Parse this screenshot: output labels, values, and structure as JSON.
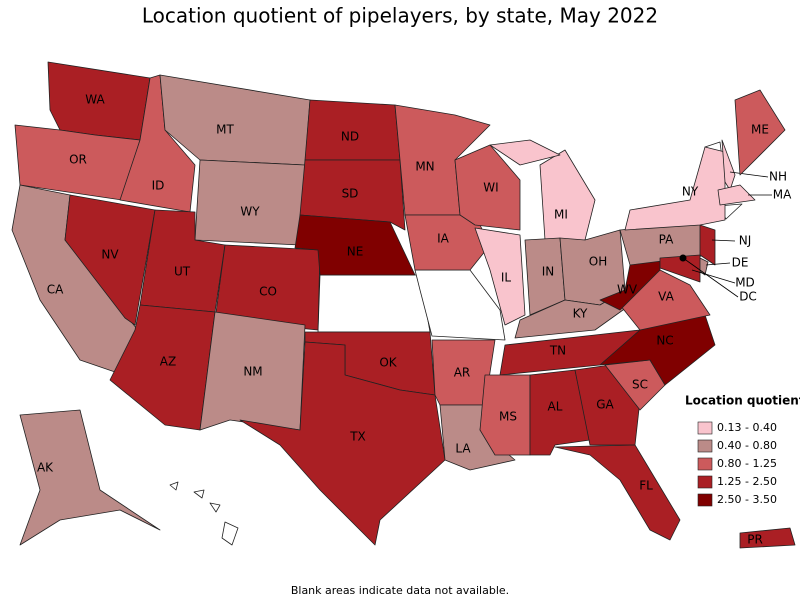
{
  "title": "Location quotient of pipelayers, by state, May 2022",
  "legend": {
    "title": "Location quotient",
    "items": [
      {
        "label": "0.13 - 0.40",
        "color": "#f9c4cd"
      },
      {
        "label": "0.40 - 0.80",
        "color": "#bb8b88"
      },
      {
        "label": "0.80 - 1.25",
        "color": "#cc5a5c"
      },
      {
        "label": "1.25 - 2.50",
        "color": "#aa1f24"
      },
      {
        "label": "2.50 - 3.50",
        "color": "#800000"
      }
    ]
  },
  "states": [
    {
      "label": "WA",
      "class": 3
    },
    {
      "label": "OR",
      "class": 2
    },
    {
      "label": "CA",
      "class": 1
    },
    {
      "label": "NV",
      "class": 3
    },
    {
      "label": "ID",
      "class": 2
    },
    {
      "label": "MT",
      "class": 1
    },
    {
      "label": "WY",
      "class": 1
    },
    {
      "label": "UT",
      "class": 3
    },
    {
      "label": "CO",
      "class": 3
    },
    {
      "label": "AZ",
      "class": 3
    },
    {
      "label": "NM",
      "class": 1
    },
    {
      "label": "ND",
      "class": 3
    },
    {
      "label": "SD",
      "class": 3
    },
    {
      "label": "NE",
      "class": 4
    },
    {
      "label": "OK",
      "class": 3
    },
    {
      "label": "TX",
      "class": 3
    },
    {
      "label": "MN",
      "class": 2
    },
    {
      "label": "IA",
      "class": 2
    },
    {
      "label": "AR",
      "class": 2
    },
    {
      "label": "LA",
      "class": 1
    },
    {
      "label": "WI",
      "class": 2
    },
    {
      "label": "IL",
      "class": 0
    },
    {
      "label": "MI",
      "class": 0
    },
    {
      "label": "IN",
      "class": 1
    },
    {
      "label": "OH",
      "class": 1
    },
    {
      "label": "KY",
      "class": 1
    },
    {
      "label": "TN",
      "class": 3
    },
    {
      "label": "MS",
      "class": 2
    },
    {
      "label": "AL",
      "class": 3
    },
    {
      "label": "GA",
      "class": 3
    },
    {
      "label": "FL",
      "class": 3
    },
    {
      "label": "SC",
      "class": 2
    },
    {
      "label": "NC",
      "class": 4
    },
    {
      "label": "VA",
      "class": 2
    },
    {
      "label": "WV",
      "class": 4
    },
    {
      "label": "PA",
      "class": 1
    },
    {
      "label": "NY",
      "class": 0
    },
    {
      "label": "NH",
      "class": 0
    },
    {
      "label": "ME",
      "class": 2
    },
    {
      "label": "MA",
      "class": 0
    },
    {
      "label": "NJ",
      "class": 3
    },
    {
      "label": "DE",
      "class": 1
    },
    {
      "label": "MD",
      "class": 3
    },
    {
      "label": "DC",
      "class": 4
    },
    {
      "label": "AK",
      "class": 1
    },
    {
      "label": "PR",
      "class": 3
    }
  ],
  "note": "Blank areas indicate data not available."
}
